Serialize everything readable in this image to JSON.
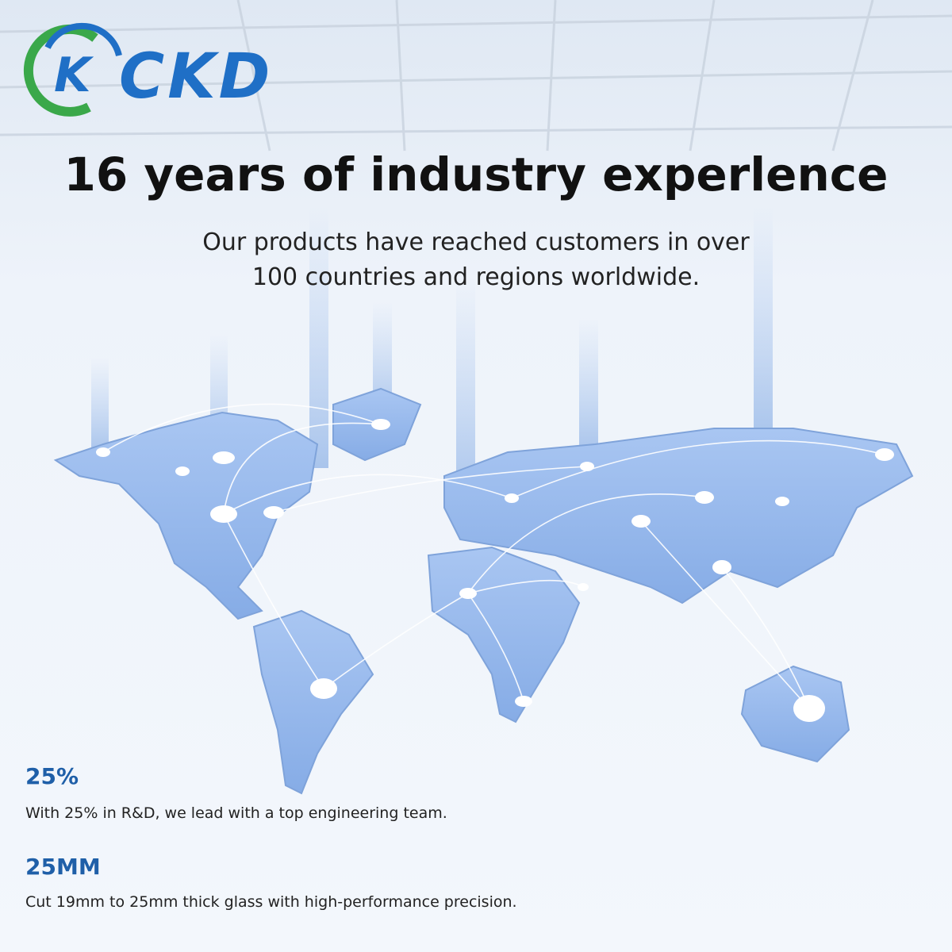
{
  "logo": {
    "mark": "K",
    "text": "CKD"
  },
  "header": {
    "title": "16 years of industry experlence",
    "subtitle_lines": [
      "Our products have reached customers in over",
      "100 countries and regions worldwide."
    ]
  },
  "stats": [
    {
      "value": "25%",
      "text": "With 25% in R&D, we lead with a top engineering team."
    },
    {
      "value": "25MM",
      "text": "Cut 19mm to 25mm thick glass with high-performance precision."
    }
  ]
}
